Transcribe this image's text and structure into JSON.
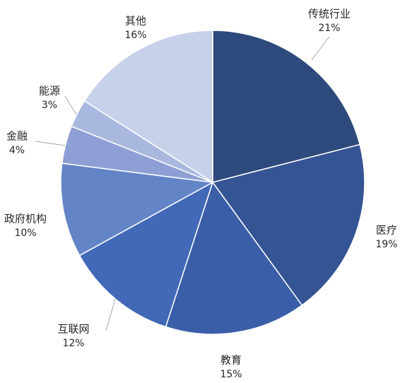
{
  "chart_data": {
    "type": "pie",
    "title": "",
    "start_angle_deg": 0,
    "direction": "clockwise",
    "slices": [
      {
        "label": "传统行业",
        "value": 21,
        "value_label": "21%",
        "color": "#2e4a7d"
      },
      {
        "label": "医疗",
        "value": 19,
        "value_label": "19%",
        "color": "#345494"
      },
      {
        "label": "教育",
        "value": 15,
        "value_label": "15%",
        "color": "#3a5ea8"
      },
      {
        "label": "互联网",
        "value": 12,
        "value_label": "12%",
        "color": "#4169b8"
      },
      {
        "label": "政府机构",
        "value": 10,
        "value_label": "10%",
        "color": "#6385c8"
      },
      {
        "label": "金融",
        "value": 4,
        "value_label": "4%",
        "color": "#8d9fd4"
      },
      {
        "label": "能源",
        "value": 3,
        "value_label": "3%",
        "color": "#a9b8df"
      },
      {
        "label": "其他",
        "value": 16,
        "value_label": "16%",
        "color": "#c8d1ea"
      }
    ]
  }
}
